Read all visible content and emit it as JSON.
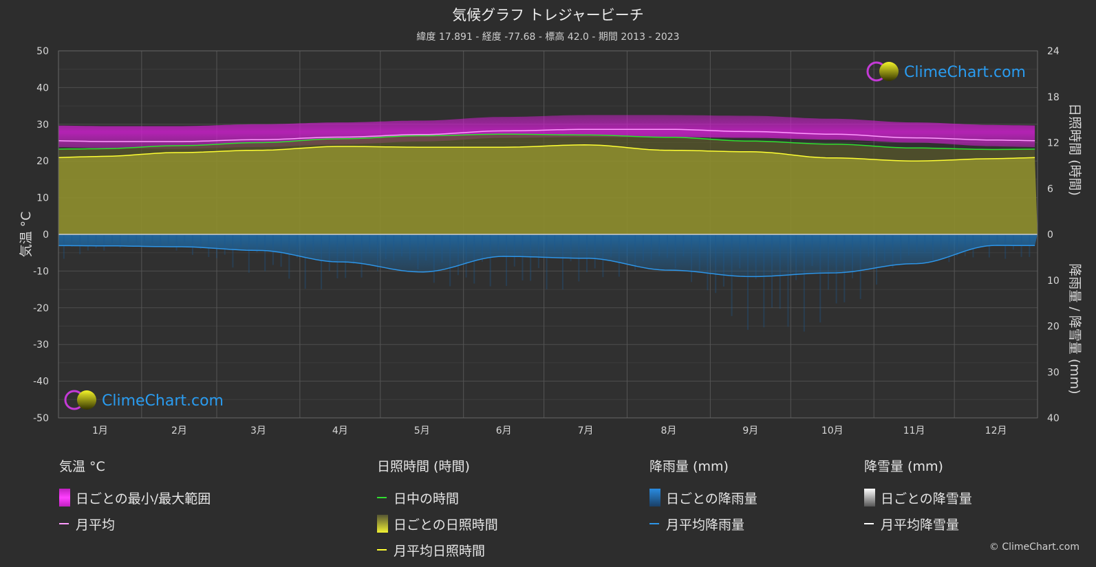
{
  "title": "気候グラフ トレジャービーチ",
  "subtitle": "緯度 17.891 - 経度 -77.68 - 標高 42.0 - 期間 2013 - 2023",
  "logo_text": "ClimeChart.com",
  "copyright": "© ClimeChart.com",
  "colors": {
    "temp_range": "#d21fd2",
    "temp_avg": "#ff9bff",
    "daylight": "#30e030",
    "sunshine_fill": "#8f8f2e",
    "sunshine_avg": "#ffff33",
    "rain_fill": "#1f6fae",
    "rain_avg": "#2d95e8",
    "snow_avg": "#ffffff"
  },
  "chart_data": {
    "type": "area",
    "months": [
      "1月",
      "2月",
      "3月",
      "4月",
      "5月",
      "6月",
      "7月",
      "8月",
      "9月",
      "10月",
      "11月",
      "12月"
    ],
    "axes": {
      "left": {
        "label": "気温 °C",
        "range": [
          -50,
          50
        ],
        "ticks": [
          50,
          40,
          30,
          20,
          10,
          0,
          -10,
          -20,
          -30,
          -40,
          -50
        ]
      },
      "right_top": {
        "label": "日照時間 (時間)",
        "range": [
          0,
          24
        ],
        "ticks": [
          24,
          18,
          12,
          6,
          0
        ]
      },
      "right_bottom": {
        "label": "降雨量 / 降雪量 (mm)",
        "range": [
          0,
          40
        ],
        "ticks": [
          0,
          10,
          20,
          30,
          40
        ]
      }
    },
    "grid": true,
    "series": [
      {
        "name": "日ごとの最小/最大範囲",
        "kind": "band",
        "min": [
          23.5,
          23.3,
          23.8,
          24.5,
          25.3,
          26.3,
          26.5,
          26.5,
          26.3,
          25.8,
          25,
          24
        ],
        "max": [
          29.5,
          29.5,
          30,
          30.5,
          31,
          32,
          32.5,
          32.5,
          32.3,
          31.5,
          30.5,
          29.8
        ]
      },
      {
        "name": "月平均",
        "kind": "temp_avg",
        "values": [
          25.3,
          25.3,
          25.8,
          26.5,
          27.2,
          28.2,
          28.6,
          28.6,
          28,
          27.3,
          26.3,
          25.7
        ]
      },
      {
        "name": "日中の時間",
        "kind": "daylight",
        "values": [
          11.2,
          11.6,
          12.0,
          12.5,
          12.9,
          13.1,
          13.0,
          12.7,
          12.2,
          11.8,
          11.3,
          11.1
        ]
      },
      {
        "name": "日ごとの日照時間",
        "kind": "sunshine_fill",
        "values": [
          10.2,
          10.7,
          11.0,
          11.5,
          11.4,
          11.4,
          11.7,
          11.0,
          10.8,
          10.0,
          9.6,
          9.9
        ]
      },
      {
        "name": "月平均日照時間",
        "kind": "sunshine_avg",
        "values": [
          10.2,
          10.7,
          11.0,
          11.5,
          11.4,
          11.4,
          11.7,
          11.0,
          10.8,
          10.0,
          9.6,
          9.9
        ]
      },
      {
        "name": "日ごとの降雨量",
        "kind": "rain_fill",
        "values": [
          2.5,
          2.7,
          3.5,
          6,
          8.2,
          4.8,
          5.2,
          7.8,
          9.2,
          8.4,
          6.4,
          2.4
        ]
      },
      {
        "name": "月平均降雨量",
        "kind": "rain_avg",
        "values": [
          2.5,
          2.7,
          3.5,
          6,
          8.2,
          4.8,
          5.2,
          7.8,
          9.2,
          8.4,
          6.4,
          2.4
        ]
      },
      {
        "name": "日ごとの降雪量",
        "kind": "snow_fill",
        "values": [
          0,
          0,
          0,
          0,
          0,
          0,
          0,
          0,
          0,
          0,
          0,
          0
        ]
      },
      {
        "name": "月平均降雪量",
        "kind": "snow_avg",
        "values": [
          0,
          0,
          0,
          0,
          0,
          0,
          0,
          0,
          0,
          0,
          0,
          0
        ]
      }
    ]
  },
  "legend": {
    "temperature": {
      "title": "気温 °C",
      "range": "日ごとの最小/最大範囲",
      "avg": "月平均"
    },
    "sunshine": {
      "title": "日照時間 (時間)",
      "daylight": "日中の時間",
      "daily": "日ごとの日照時間",
      "avg": "月平均日照時間"
    },
    "rain": {
      "title": "降雨量 (mm)",
      "daily": "日ごとの降雨量",
      "avg": "月平均降雨量"
    },
    "snow": {
      "title": "降雪量 (mm)",
      "daily": "日ごとの降雪量",
      "avg": "月平均降雪量"
    }
  }
}
